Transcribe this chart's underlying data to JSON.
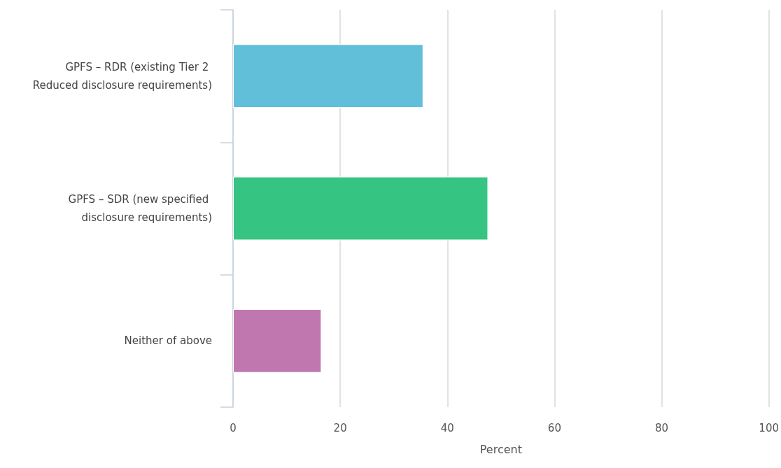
{
  "chart_data": {
    "type": "bar",
    "orientation": "horizontal",
    "xlabel": "Percent",
    "categories": [
      "GPFS – RDR (existing Tier 2 Reduced disclosure requirements)",
      "GPFS – SDR (new specified disclosure requirements)",
      "Neither of above"
    ],
    "values": [
      35.5,
      47.6,
      16.5
    ],
    "colors": [
      "#62bfd9",
      "#35c482",
      "#c077b0"
    ],
    "xlim": [
      0,
      100
    ],
    "xticks": [
      0,
      20,
      40,
      60,
      80,
      100
    ],
    "grid": "x"
  }
}
